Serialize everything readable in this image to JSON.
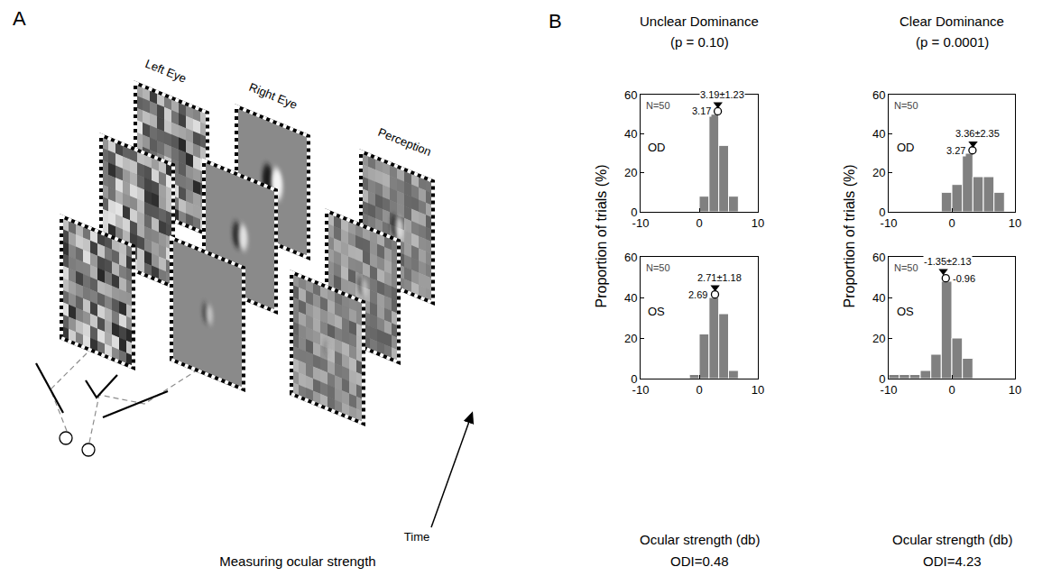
{
  "panel_labels": [
    "A",
    "B"
  ],
  "diagram": {
    "left_eye": "Left Eye",
    "right_eye": "Right Eye",
    "perception": "Perception",
    "time": "Time",
    "caption": "Measuring ocular strength"
  },
  "axis_labels": {
    "x": "Ocular strength (db)",
    "y": "Proportion of trials (%)"
  },
  "columns": [
    {
      "title": "Unclear Dominance",
      "p_label": "(p = 0.10)",
      "odi": "ODI=0.48"
    },
    {
      "title": "Clear Dominance",
      "p_label": "(p = 0.0001)",
      "odi": "ODI=4.23"
    }
  ],
  "chart_data": [
    {
      "type": "histogram",
      "eye": "OD",
      "n_label": "N=50",
      "bins": [
        0,
        1.67,
        3.33,
        5,
        6.67
      ],
      "values": [
        8,
        50,
        34,
        8
      ],
      "color": "#808080",
      "mean": 3.19,
      "mean_label": "3.19±1.23",
      "median": 3.17,
      "xlim": [
        -10,
        10
      ],
      "xticks": [
        -10,
        0,
        10
      ],
      "ylim": [
        0,
        60
      ],
      "yticks": [
        0,
        20,
        40,
        60
      ],
      "grid": false
    },
    {
      "type": "histogram",
      "eye": "OS",
      "n_label": "N=50",
      "bins": [
        -1.67,
        0,
        1.67,
        3.33,
        5,
        6.67
      ],
      "values": [
        2,
        22,
        40,
        32,
        4
      ],
      "color": "#808080",
      "mean": 2.71,
      "mean_label": "2.71±1.18",
      "median": 2.69,
      "xlim": [
        -10,
        10
      ],
      "xticks": [
        -10,
        0,
        10
      ],
      "ylim": [
        0,
        60
      ],
      "yticks": [
        0,
        20,
        40,
        60
      ],
      "grid": false
    },
    {
      "type": "histogram",
      "eye": "OD",
      "n_label": "N=50",
      "bins": [
        -1.67,
        0,
        1.67,
        3.33,
        5,
        6.67,
        8.33
      ],
      "values": [
        10,
        14,
        30,
        18,
        18,
        10
      ],
      "color": "#808080",
      "mean": 3.36,
      "mean_label": "3.36±2.35",
      "median": 3.27,
      "xlim": [
        -10,
        10
      ],
      "xticks": [
        -10,
        0,
        10
      ],
      "ylim": [
        0,
        60
      ],
      "yticks": [
        0,
        20,
        40,
        60
      ],
      "grid": false
    },
    {
      "type": "histogram",
      "eye": "OS",
      "n_label": "N=50",
      "bins": [
        -10,
        -8.33,
        -6.67,
        -5,
        -3.33,
        -1.67,
        0,
        1.67,
        3.33
      ],
      "values": [
        2,
        2,
        2,
        4,
        12,
        48,
        20,
        10
      ],
      "color": "#808080",
      "mean": -1.35,
      "mean_label": "-1.35±2.13",
      "median": -0.96,
      "xlim": [
        -10,
        10
      ],
      "xticks": [
        -10,
        0,
        10
      ],
      "ylim": [
        0,
        60
      ],
      "yticks": [
        0,
        20,
        40,
        60
      ],
      "grid": false
    }
  ]
}
